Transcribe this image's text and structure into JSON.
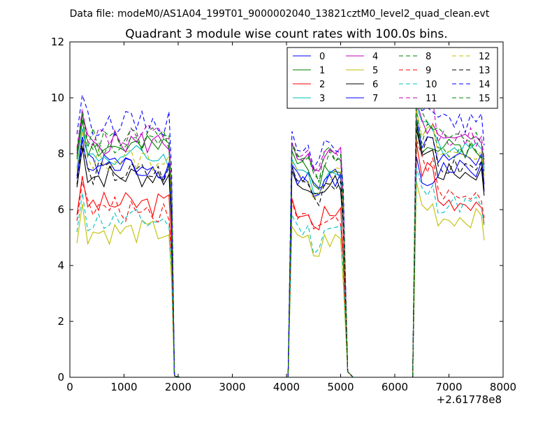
{
  "figure": {
    "suptitle": "Data file: modeM0/AS1A04_199T01_9000002040_13821cztM0_level2_quad_clean.evt"
  },
  "chart_data": {
    "type": "line",
    "title": "Quadrant 3 module wise count rates with 100.0s bins.",
    "xlabel": "",
    "ylabel": "",
    "x_offset_label": "+2.61778e8",
    "xlim": [
      0,
      8000
    ],
    "ylim": [
      0,
      12
    ],
    "xticks": [
      0,
      1000,
      2000,
      3000,
      4000,
      5000,
      6000,
      7000,
      8000
    ],
    "yticks": [
      0,
      2,
      4,
      6,
      8,
      10,
      12
    ],
    "grid": false,
    "legend": {
      "placement": "top-right",
      "columns": 4
    },
    "x_ranges": [
      {
        "start": 130,
        "end": 1830,
        "step": 100
      },
      {
        "start": 4100,
        "end": 5000,
        "step": 100
      },
      {
        "start": 6400,
        "end": 7600,
        "step": 100
      }
    ],
    "gap_x": [
      1930,
      2030,
      4030,
      5130,
      5230,
      6330
    ],
    "edge_x": [
      1880,
      5050,
      7650
    ],
    "drop_y": 0.2,
    "series": [
      {
        "name": "0",
        "color": "#0000ff",
        "dash": false,
        "base": [
          7.6,
          7.2,
          7.1,
          7.0,
          7.45
        ],
        "seed": 1
      },
      {
        "name": "1",
        "color": "#008000",
        "dash": false,
        "base": [
          8.2,
          7.4,
          7.6,
          8.2,
          8.2
        ],
        "seed": 2
      },
      {
        "name": "2",
        "color": "#ff0000",
        "dash": false,
        "base": [
          6.2,
          5.6,
          5.9,
          7.5,
          6.3
        ],
        "seed": 3
      },
      {
        "name": "3",
        "color": "#00bfbf",
        "dash": false,
        "base": [
          7.9,
          7.1,
          7.3,
          8.8,
          8.3
        ],
        "seed": 4
      },
      {
        "name": "4",
        "color": "#bf00bf",
        "dash": false,
        "base": [
          8.4,
          7.6,
          7.9,
          9.0,
          8.4
        ],
        "seed": 5
      },
      {
        "name": "5",
        "color": "#bfbf00",
        "dash": false,
        "base": [
          5.2,
          4.8,
          4.9,
          6.1,
          5.7
        ],
        "seed": 6
      },
      {
        "name": "6",
        "color": "#000000",
        "dash": false,
        "base": [
          7.2,
          6.7,
          6.9,
          8.0,
          7.3
        ],
        "seed": 7
      },
      {
        "name": "7",
        "color": "#0000ff",
        "dash": false,
        "base": [
          7.5,
          6.9,
          7.1,
          8.4,
          7.7
        ],
        "seed": 8
      },
      {
        "name": "8",
        "color": "#008000",
        "dash": true,
        "base": [
          8.3,
          7.6,
          7.9,
          8.7,
          8.1
        ],
        "seed": 9
      },
      {
        "name": "9",
        "color": "#ff0000",
        "dash": true,
        "base": [
          6.0,
          5.7,
          5.8,
          7.6,
          6.5
        ],
        "seed": 10
      },
      {
        "name": "10",
        "color": "#00bfbf",
        "dash": true,
        "base": [
          5.6,
          5.1,
          5.3,
          6.6,
          6.2
        ],
        "seed": 11
      },
      {
        "name": "11",
        "color": "#bf00bf",
        "dash": true,
        "base": [
          8.6,
          7.7,
          7.9,
          9.6,
          8.6
        ],
        "seed": 12
      },
      {
        "name": "12",
        "color": "#bfbf00",
        "dash": true,
        "base": [
          7.8,
          7.0,
          7.2,
          8.7,
          8.0
        ],
        "seed": 13
      },
      {
        "name": "13",
        "color": "#000000",
        "dash": true,
        "base": [
          7.3,
          6.8,
          7.0,
          8.2,
          7.5
        ],
        "seed": 14
      },
      {
        "name": "14",
        "color": "#0000ff",
        "dash": true,
        "base": [
          9.1,
          8.1,
          8.3,
          9.9,
          9.1
        ],
        "seed": 15
      },
      {
        "name": "15",
        "color": "#008000",
        "dash": true,
        "base": [
          8.5,
          7.6,
          7.8,
          9.2,
          8.6
        ],
        "seed": 16
      }
    ]
  }
}
